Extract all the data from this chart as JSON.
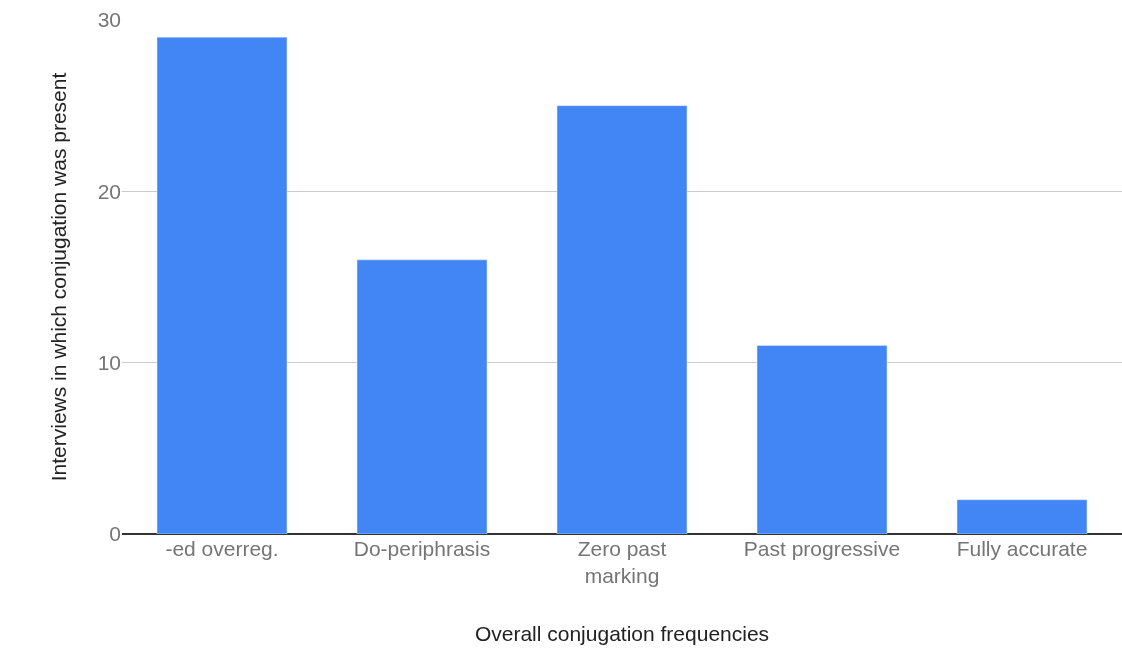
{
  "chart_data": {
    "type": "bar",
    "xlabel": "Overall conjugation frequencies",
    "ylabel": "Interviews in which conjugation was present",
    "categories": [
      "-ed overreg.",
      "Do-periphrasis",
      "Zero past marking",
      "Past progressive",
      "Fully accurate"
    ],
    "values": [
      29,
      16,
      25,
      11,
      2
    ],
    "color": "#4285f4",
    "ylim": [
      0,
      30
    ],
    "yticks": [
      0,
      10,
      20,
      30
    ],
    "grid": "y",
    "legend": false
  }
}
